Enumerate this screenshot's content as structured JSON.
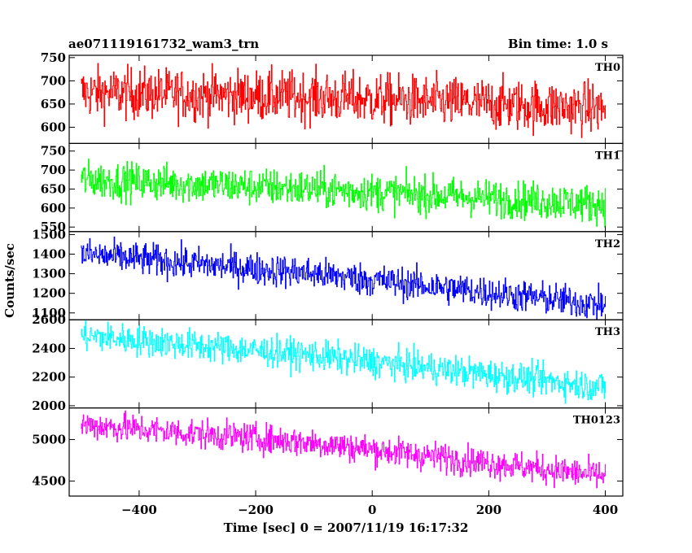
{
  "header": {
    "title": "ae071119161732_wam3_trn",
    "bin_time": "Bin time: 1.0 s"
  },
  "chart_data": {
    "type": "line",
    "xlabel": "Time [sec] 0 = 2007/11/19 16:17:32",
    "ylabel": "Counts/sec",
    "xlim": [
      -520,
      430
    ],
    "x_ticks": [
      -400,
      -200,
      0,
      200,
      400
    ],
    "x_tick_labels": [
      "−400",
      "−200",
      "0",
      "200",
      "400"
    ],
    "x_range": [
      -500,
      400
    ],
    "bin_time_s": 1.0,
    "grid": false,
    "legend": "none",
    "panels": [
      {
        "name": "TH0",
        "color": "#ff0000",
        "ylim": [
          565,
          755
        ],
        "y_ticks": [
          600,
          650,
          700,
          750
        ],
        "trend": [
          [
            -500,
            675
          ],
          [
            -100,
            665
          ],
          [
            400,
            640
          ]
        ],
        "noise": 28
      },
      {
        "name": "TH1",
        "color": "#00ff00",
        "ylim": [
          538,
          770
        ],
        "y_ticks": [
          550,
          600,
          650,
          700,
          750
        ],
        "trend": [
          [
            -500,
            675
          ],
          [
            -100,
            650
          ],
          [
            400,
            610
          ]
        ],
        "noise": 25
      },
      {
        "name": "TH2",
        "color": "#0000ff",
        "ylim": [
          1065,
          1515
        ],
        "y_ticks": [
          1100,
          1200,
          1300,
          1400,
          1500
        ],
        "trend": [
          [
            -500,
            1400
          ],
          [
            -100,
            1300
          ],
          [
            400,
            1140
          ]
        ],
        "noise": 42
      },
      {
        "name": "TH3",
        "color": "#00ffff",
        "ylim": [
          1985,
          2600
        ],
        "y_ticks": [
          2000,
          2200,
          2400,
          2600
        ],
        "trend": [
          [
            -500,
            2490
          ],
          [
            -100,
            2350
          ],
          [
            400,
            2130
          ]
        ],
        "noise": 55
      },
      {
        "name": "TH0123",
        "color": "#ff00ff",
        "ylim": [
          4320,
          5380
        ],
        "y_ticks": [
          4500,
          5000
        ],
        "trend": [
          [
            -500,
            5180
          ],
          [
            -100,
            4960
          ],
          [
            400,
            4560
          ]
        ],
        "noise": 90
      }
    ]
  }
}
